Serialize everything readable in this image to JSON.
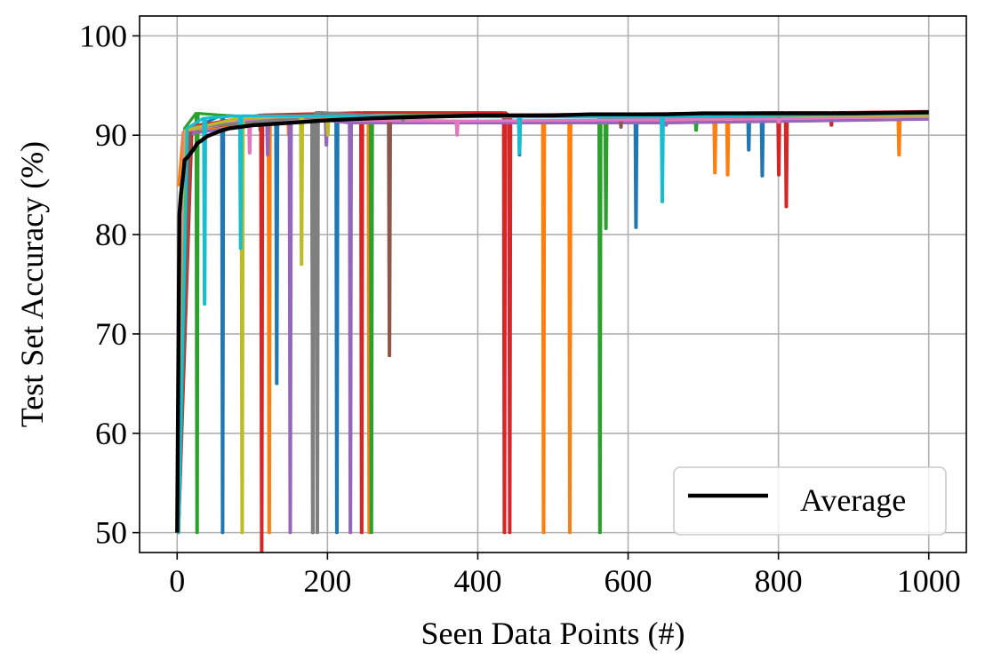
{
  "chart_data": {
    "type": "line",
    "title": "",
    "xlabel": "Seen Data Points (#)",
    "ylabel": "Test Set Accuracy (%)",
    "xlim": [
      -50,
      1050
    ],
    "ylim": [
      48,
      102
    ],
    "xticks": [
      0,
      200,
      400,
      600,
      800,
      1000
    ],
    "yticks": [
      50,
      60,
      70,
      80,
      90,
      100
    ],
    "grid": true,
    "legend": {
      "placement": "bottom-right",
      "entries": [
        "Average"
      ]
    },
    "average_series": {
      "name": "Average",
      "color": "#000000",
      "x": [
        0,
        3,
        5,
        8,
        10,
        14,
        18,
        22,
        27,
        33,
        40,
        50,
        60,
        70,
        80,
        90,
        100,
        120,
        140,
        160,
        180,
        200,
        230,
        260,
        300,
        350,
        400,
        450,
        500,
        550,
        600,
        650,
        700,
        800,
        900,
        1000
      ],
      "values": [
        50,
        82,
        84,
        86,
        87.5,
        87.8,
        88.2,
        88.6,
        89.2,
        89.5,
        89.9,
        90.2,
        90.5,
        90.7,
        90.8,
        90.9,
        91.0,
        91.1,
        91.2,
        91.3,
        91.4,
        91.5,
        91.6,
        91.7,
        91.8,
        91.9,
        92.0,
        92.0,
        92.0,
        92.1,
        92.1,
        92.1,
        92.2,
        92.2,
        92.2,
        92.3
      ]
    },
    "individual_runs": [
      {
        "color": "#1f77b4",
        "plateau": 92.0,
        "start": 50,
        "rise_end": 15,
        "dips": [
          [
            60,
            50
          ],
          [
            132,
            65
          ],
          [
            212,
            50
          ],
          [
            455,
            88
          ],
          [
            610,
            80.7
          ],
          [
            760,
            88.5
          ],
          [
            778,
            85.9
          ],
          [
            810,
            91
          ]
        ]
      },
      {
        "color": "#ff7f0e",
        "plateau": 91.8,
        "start": 85,
        "rise_end": 8,
        "dips": [
          [
            122,
            50
          ],
          [
            148,
            90
          ],
          [
            255,
            50
          ],
          [
            487,
            50
          ],
          [
            522,
            50
          ],
          [
            715,
            86.2
          ],
          [
            732,
            86
          ],
          [
            960,
            88
          ]
        ]
      },
      {
        "color": "#2ca02c",
        "plateau": 92.2,
        "start": 50,
        "rise_end": 10,
        "dips": [
          [
            26,
            50
          ],
          [
            110,
            90.5
          ],
          [
            258,
            50
          ],
          [
            562,
            50
          ],
          [
            570,
            80.6
          ],
          [
            690,
            90.5
          ]
        ]
      },
      {
        "color": "#d62728",
        "plateau": 92.4,
        "start": 50,
        "rise_end": 20,
        "dips": [
          [
            112,
            48
          ],
          [
            245,
            50
          ],
          [
            435,
            50
          ],
          [
            442,
            50
          ],
          [
            810,
            82.8
          ],
          [
            800,
            86
          ],
          [
            870,
            91
          ]
        ]
      },
      {
        "color": "#9467bd",
        "plateau": 91.6,
        "start": 50,
        "rise_end": 12,
        "dips": [
          [
            120,
            88
          ],
          [
            150,
            50
          ],
          [
            198,
            89
          ],
          [
            230,
            50
          ],
          [
            650,
            91
          ]
        ]
      },
      {
        "color": "#8c564b",
        "plateau": 92.1,
        "start": 50,
        "rise_end": 18,
        "dips": [
          [
            15,
            48
          ],
          [
            180,
            50
          ],
          [
            282,
            67.8
          ],
          [
            590,
            90.8
          ]
        ]
      },
      {
        "color": "#e377c2",
        "plateau": 91.9,
        "start": 50,
        "rise_end": 9,
        "dips": [
          [
            96,
            88.2
          ],
          [
            372,
            90
          ],
          [
            800,
            91.3
          ]
        ]
      },
      {
        "color": "#7f7f7f",
        "plateau": 92.3,
        "start": 50,
        "rise_end": 14,
        "dips": [
          [
            180,
            50
          ],
          [
            186,
            50
          ],
          [
            300,
            91.5
          ]
        ]
      },
      {
        "color": "#bcbd22",
        "plateau": 92.0,
        "start": 50,
        "rise_end": 11,
        "dips": [
          [
            86,
            50
          ],
          [
            165,
            77
          ],
          [
            200,
            90
          ]
        ]
      },
      {
        "color": "#17becf",
        "plateau": 92.2,
        "start": 50,
        "rise_end": 13,
        "dips": [
          [
            36,
            73
          ],
          [
            84,
            78.6
          ],
          [
            455,
            88.2
          ],
          [
            645,
            83.3
          ]
        ]
      }
    ]
  }
}
